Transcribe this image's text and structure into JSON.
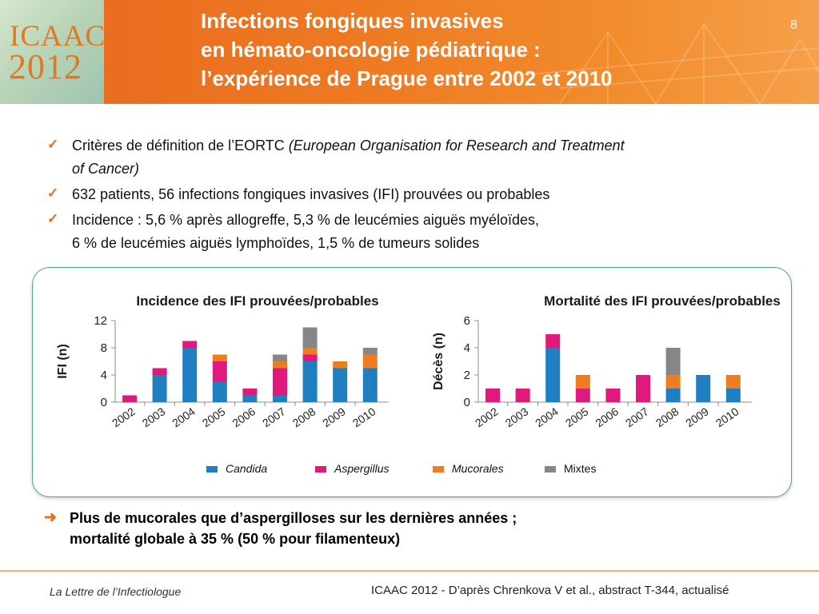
{
  "header": {
    "logo_name": "ICAAC",
    "logo_year": "2012",
    "title_lines": [
      "Infections fongiques invasives",
      "en hémato-oncologie pédiatrique :",
      "l’expérience de Prague entre 2002 et 2010"
    ],
    "page_number": "8"
  },
  "bullets": [
    {
      "lines": [
        {
          "plain": "Critères de définition de l’EORTC ",
          "italic": "(European Organisation for Research and Treatment"
        },
        {
          "plain": "",
          "italic": "of Cancer)"
        }
      ]
    },
    {
      "lines": [
        {
          "plain": "632 patients, 56 infections fongiques invasives (IFI) prouvées ou probables",
          "italic": ""
        }
      ]
    },
    {
      "lines": [
        {
          "plain": "Incidence : 5,6 % après allogreffe, 5,3 % de leucémies aiguës myéloïdes,",
          "italic": ""
        },
        {
          "plain": "6 % de leucémies aiguës lymphoïdes, 1,5 % de tumeurs solides",
          "italic": ""
        }
      ]
    }
  ],
  "colors": {
    "Candida": "#1f7fc0",
    "Aspergillus": "#e0197d",
    "Mucorales": "#f07d1d",
    "Mixtes": "#868686",
    "accent": "#e0701e"
  },
  "chart_data": [
    {
      "type": "bar",
      "stacked": true,
      "title": "Incidence des IFI prouvées/probables",
      "xlabel": "",
      "ylabel": "IFI (n)",
      "ylim": [
        0,
        12
      ],
      "yticks": [
        0,
        4,
        8,
        12
      ],
      "categories": [
        "2002",
        "2003",
        "2004",
        "2005",
        "2006",
        "2007",
        "2008",
        "2009",
        "2010"
      ],
      "series": [
        {
          "name": "Candida",
          "values": [
            0,
            4,
            8,
            3,
            1,
            1,
            6,
            5,
            5
          ]
        },
        {
          "name": "Aspergillus",
          "values": [
            1,
            1,
            1,
            3,
            1,
            4,
            1,
            0,
            0
          ]
        },
        {
          "name": "Mucorales",
          "values": [
            0,
            0,
            0,
            1,
            0,
            1,
            1,
            1,
            2
          ]
        },
        {
          "name": "Mixtes",
          "values": [
            0,
            0,
            0,
            0,
            0,
            1,
            3,
            0,
            1
          ]
        }
      ]
    },
    {
      "type": "bar",
      "stacked": true,
      "title": "Mortalité des IFI prouvées/probables",
      "xlabel": "",
      "ylabel": "Décès (n)",
      "ylim": [
        0,
        6
      ],
      "yticks": [
        0,
        2,
        4,
        6
      ],
      "categories": [
        "2002",
        "2003",
        "2004",
        "2005",
        "2006",
        "2007",
        "2008",
        "2009",
        "2010"
      ],
      "series": [
        {
          "name": "Candida",
          "values": [
            0,
            0,
            4,
            0,
            0,
            0,
            1,
            2,
            1
          ]
        },
        {
          "name": "Aspergillus",
          "values": [
            1,
            1,
            1,
            1,
            1,
            2,
            0,
            0,
            0
          ]
        },
        {
          "name": "Mucorales",
          "values": [
            0,
            0,
            0,
            1,
            0,
            0,
            1,
            0,
            1
          ]
        },
        {
          "name": "Mixtes",
          "values": [
            0,
            0,
            0,
            0,
            0,
            0,
            2,
            0,
            0
          ]
        }
      ]
    }
  ],
  "legend": [
    "Candida",
    "Aspergillus",
    "Mucorales",
    "Mixtes"
  ],
  "conclusion": {
    "lines": [
      "Plus de mucorales que d’aspergilloses sur les dernières années ;",
      "mortalité globale à 35 % (50 % pour filamenteux)"
    ]
  },
  "footer": {
    "left": "La Lettre de l’Infectiologue",
    "right": "ICAAC 2012 - D’après Chrenkova V et al., abstract T-344, actualisé"
  }
}
